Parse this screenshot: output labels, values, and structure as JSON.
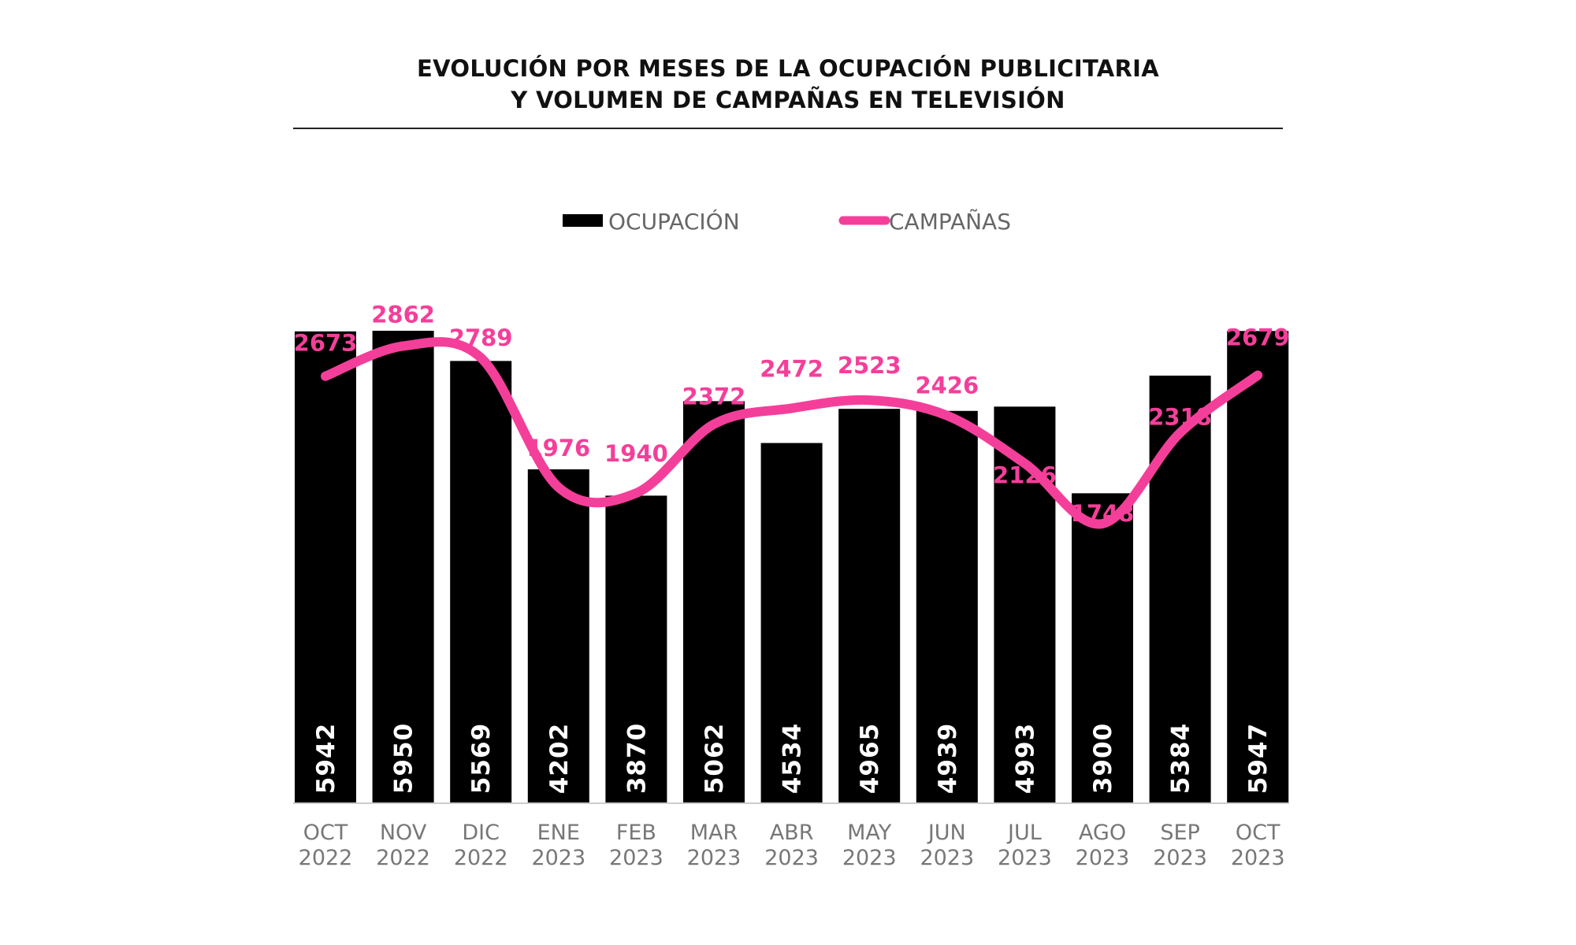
{
  "chart_data": {
    "type": "bar+line",
    "title": [
      "EVOLUCIÓN POR MESES DE LA OCUPACIÓN PUBLICITARIA",
      "Y VOLUMEN DE CAMPAÑAS EN TELEVISIÓN"
    ],
    "legend_position": "top",
    "grid": false,
    "categories": [
      [
        "OCT",
        "2022"
      ],
      [
        "NOV",
        "2022"
      ],
      [
        "DIC",
        "2022"
      ],
      [
        "ENE",
        "2023"
      ],
      [
        "FEB",
        "2023"
      ],
      [
        "MAR",
        "2023"
      ],
      [
        "ABR",
        "2023"
      ],
      [
        "MAY",
        "2023"
      ],
      [
        "JUN",
        "2023"
      ],
      [
        "JUL",
        "2023"
      ],
      [
        "AGO",
        "2023"
      ],
      [
        "SEP",
        "2023"
      ],
      [
        "OCT",
        "2023"
      ]
    ],
    "series": [
      {
        "name": "OCUPACIÓN",
        "type": "bar",
        "color": "#000000",
        "label_color": "#ffffff",
        "values": [
          5942,
          5950,
          5569,
          4202,
          3870,
          5062,
          4534,
          4965,
          4939,
          4993,
          3900,
          5384,
          5947
        ],
        "ylim": [
          0,
          5950
        ]
      },
      {
        "name": "CAMPAÑAS",
        "type": "line",
        "smooth": true,
        "color": "#f43f9a",
        "values": [
          2673,
          2862,
          2789,
          1976,
          1940,
          2372,
          2472,
          2523,
          2426,
          2126,
          1748,
          2318,
          2679
        ],
        "ylim": [
          0,
          2958
        ]
      }
    ]
  }
}
